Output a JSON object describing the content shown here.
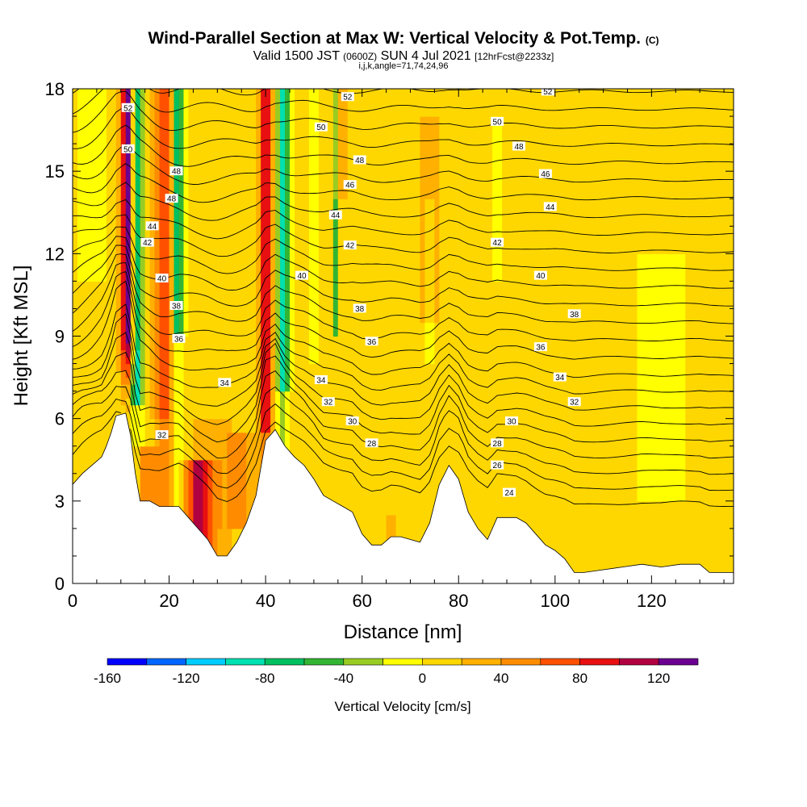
{
  "title": {
    "main": "Wind-Parallel Section at Max W: Vertical Velocity & Pot.Temp.",
    "copyright": "(C)",
    "valid_prefix": "Valid 1500 JST",
    "valid_utc": "(0600Z)",
    "valid_date": "SUN 4 Jul 2021",
    "forecast": "[12hrFcst@2233z]",
    "params": "i,j,k,angle=71,74,24,96"
  },
  "chart_data": {
    "type": "heatmap",
    "xlabel": "Distance [nm]",
    "ylabel": "Height [Kft MSL]",
    "xlim": [
      0,
      137
    ],
    "ylim": [
      0,
      18
    ],
    "x_ticks": [
      0,
      20,
      40,
      60,
      80,
      100,
      120
    ],
    "y_ticks": [
      0,
      3,
      6,
      9,
      12,
      15,
      18
    ],
    "colorbar": {
      "label": "Vertical Velocity [cm/s]",
      "range": [
        -160,
        140
      ],
      "tick_values": [
        -160,
        -120,
        -80,
        -40,
        0,
        40,
        80,
        120
      ],
      "bins": [
        {
          "from": -160,
          "to": -140,
          "color": "#0000ff"
        },
        {
          "from": -140,
          "to": -120,
          "color": "#0066ff"
        },
        {
          "from": -120,
          "to": -100,
          "color": "#00ccff"
        },
        {
          "from": -100,
          "to": -80,
          "color": "#00e0b0"
        },
        {
          "from": -80,
          "to": -60,
          "color": "#00c060"
        },
        {
          "from": -60,
          "to": -40,
          "color": "#33b533"
        },
        {
          "from": -40,
          "to": -20,
          "color": "#99cc22"
        },
        {
          "from": -20,
          "to": 0,
          "color": "#ffff00"
        },
        {
          "from": 0,
          "to": 20,
          "color": "#ffd700"
        },
        {
          "from": 20,
          "to": 40,
          "color": "#ffb000"
        },
        {
          "from": 40,
          "to": 60,
          "color": "#ff8c00"
        },
        {
          "from": 60,
          "to": 80,
          "color": "#ff5000"
        },
        {
          "from": 80,
          "to": 100,
          "color": "#e81010"
        },
        {
          "from": 100,
          "to": 120,
          "color": "#b00040"
        },
        {
          "from": 120,
          "to": 140,
          "color": "#6a0090"
        }
      ]
    },
    "terrain_kft": [
      [
        0,
        3.6
      ],
      [
        2,
        4.0
      ],
      [
        4,
        4.3
      ],
      [
        6,
        4.6
      ],
      [
        7,
        5.0
      ],
      [
        8,
        5.5
      ],
      [
        9,
        6.1
      ],
      [
        11,
        6.2
      ],
      [
        12,
        5.4
      ],
      [
        13,
        4.0
      ],
      [
        14,
        3.0
      ],
      [
        16,
        3.0
      ],
      [
        18,
        2.8
      ],
      [
        20,
        2.8
      ],
      [
        22,
        2.8
      ],
      [
        24,
        2.4
      ],
      [
        26,
        2.0
      ],
      [
        28,
        1.6
      ],
      [
        30,
        1.0
      ],
      [
        32,
        1.0
      ],
      [
        34,
        1.5
      ],
      [
        36,
        2.2
      ],
      [
        38,
        3.2
      ],
      [
        40,
        5.2
      ],
      [
        42,
        5.6
      ],
      [
        44,
        5.0
      ],
      [
        46,
        4.6
      ],
      [
        48,
        4.3
      ],
      [
        50,
        3.8
      ],
      [
        52,
        3.2
      ],
      [
        54,
        3.0
      ],
      [
        56,
        2.8
      ],
      [
        58,
        2.6
      ],
      [
        60,
        1.8
      ],
      [
        62,
        1.4
      ],
      [
        64,
        1.4
      ],
      [
        66,
        1.7
      ],
      [
        68,
        1.7
      ],
      [
        70,
        1.6
      ],
      [
        72,
        1.5
      ],
      [
        74,
        2.2
      ],
      [
        76,
        3.6
      ],
      [
        78,
        4.3
      ],
      [
        80,
        3.8
      ],
      [
        82,
        2.6
      ],
      [
        84,
        2.0
      ],
      [
        86,
        1.6
      ],
      [
        88,
        2.4
      ],
      [
        90,
        2.4
      ],
      [
        92,
        2.4
      ],
      [
        94,
        2.2
      ],
      [
        96,
        1.8
      ],
      [
        98,
        1.4
      ],
      [
        100,
        1.2
      ],
      [
        102,
        0.9
      ],
      [
        104,
        0.4
      ],
      [
        106,
        0.4
      ],
      [
        110,
        0.5
      ],
      [
        114,
        0.6
      ],
      [
        118,
        0.7
      ],
      [
        122,
        0.6
      ],
      [
        126,
        0.7
      ],
      [
        130,
        0.7
      ],
      [
        132,
        0.4
      ],
      [
        137,
        0.4
      ]
    ],
    "theta_contour_labels": [
      {
        "text": "52",
        "x": 11.5,
        "y": 17.3
      },
      {
        "text": "50",
        "x": 11.5,
        "y": 15.8
      },
      {
        "text": "48",
        "x": 21.5,
        "y": 15.0
      },
      {
        "text": "48",
        "x": 20.5,
        "y": 14.0
      },
      {
        "text": "44",
        "x": 16.5,
        "y": 13.0
      },
      {
        "text": "42",
        "x": 15.5,
        "y": 12.4
      },
      {
        "text": "40",
        "x": 18.5,
        "y": 11.1
      },
      {
        "text": "38",
        "x": 21.5,
        "y": 10.1
      },
      {
        "text": "36",
        "x": 22.0,
        "y": 8.9
      },
      {
        "text": "34",
        "x": 31.5,
        "y": 7.3
      },
      {
        "text": "32",
        "x": 18.5,
        "y": 5.4
      },
      {
        "text": "52",
        "x": 57.0,
        "y": 17.7
      },
      {
        "text": "50",
        "x": 51.5,
        "y": 16.6
      },
      {
        "text": "48",
        "x": 59.5,
        "y": 15.4
      },
      {
        "text": "46",
        "x": 57.5,
        "y": 14.5
      },
      {
        "text": "44",
        "x": 54.5,
        "y": 13.4
      },
      {
        "text": "42",
        "x": 57.5,
        "y": 12.3
      },
      {
        "text": "40",
        "x": 47.5,
        "y": 11.2
      },
      {
        "text": "38",
        "x": 59.5,
        "y": 10.0
      },
      {
        "text": "36",
        "x": 62.0,
        "y": 8.8
      },
      {
        "text": "34",
        "x": 51.5,
        "y": 7.4
      },
      {
        "text": "32",
        "x": 53.0,
        "y": 6.6
      },
      {
        "text": "30",
        "x": 58.0,
        "y": 5.9
      },
      {
        "text": "28",
        "x": 62.0,
        "y": 5.1
      },
      {
        "text": "52",
        "x": 98.5,
        "y": 17.9
      },
      {
        "text": "50",
        "x": 88.0,
        "y": 16.8
      },
      {
        "text": "48",
        "x": 92.5,
        "y": 15.9
      },
      {
        "text": "46",
        "x": 98.0,
        "y": 14.9
      },
      {
        "text": "44",
        "x": 99.0,
        "y": 13.7
      },
      {
        "text": "42",
        "x": 88.0,
        "y": 12.4
      },
      {
        "text": "40",
        "x": 97.0,
        "y": 11.2
      },
      {
        "text": "38",
        "x": 104.0,
        "y": 9.8
      },
      {
        "text": "36",
        "x": 97.0,
        "y": 8.6
      },
      {
        "text": "34",
        "x": 101.0,
        "y": 7.5
      },
      {
        "text": "32",
        "x": 104.0,
        "y": 6.6
      },
      {
        "text": "30",
        "x": 91.0,
        "y": 5.9
      },
      {
        "text": "28",
        "x": 88.0,
        "y": 5.1
      },
      {
        "text": "26",
        "x": 88.0,
        "y": 4.3
      },
      {
        "text": "24",
        "x": 90.5,
        "y": 3.3
      }
    ]
  }
}
